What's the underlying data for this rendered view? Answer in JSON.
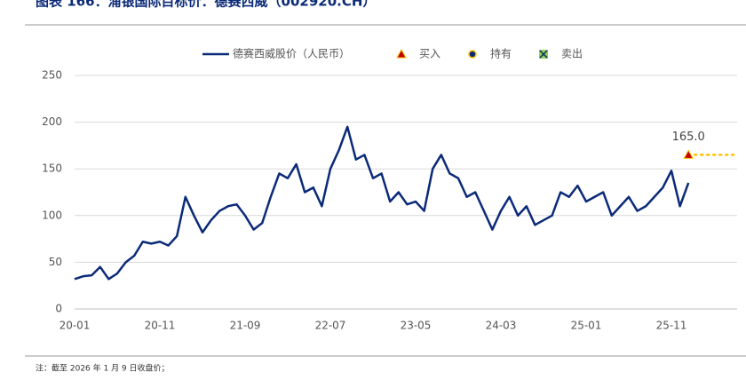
{
  "chart_data": {
    "type": "line",
    "title": "图表 166：浦银国际目标价：德赛西威（002920.CH）",
    "note": "注：截至 2026 年 1 月 9 日收盘价；",
    "categories": [
      "20-01",
      null,
      null,
      null,
      null,
      null,
      null,
      null,
      null,
      null,
      "20-11",
      null,
      null,
      null,
      null,
      null,
      null,
      null,
      null,
      null,
      "21-09",
      null,
      null,
      null,
      null,
      null,
      null,
      null,
      null,
      null,
      "22-07",
      null,
      null,
      null,
      null,
      null,
      null,
      null,
      null,
      null,
      "23-05",
      null,
      null,
      null,
      null,
      null,
      null,
      null,
      null,
      null,
      "24-03",
      null,
      null,
      null,
      null,
      null,
      null,
      null,
      null,
      null,
      "25-01",
      null,
      null,
      null,
      null,
      null,
      null,
      null,
      null,
      null,
      "25-11",
      null,
      null
    ],
    "series": [
      {
        "name": "德赛西威股价（人民币）",
        "color": "#0b2a78",
        "values": [
          32,
          35,
          36,
          45,
          32,
          38,
          50,
          57,
          72,
          70,
          72,
          68,
          78,
          120,
          100,
          82,
          95,
          105,
          110,
          112,
          100,
          85,
          92,
          120,
          145,
          140,
          155,
          125,
          130,
          110,
          150,
          170,
          195,
          160,
          165,
          140,
          145,
          115,
          125,
          112,
          115,
          105,
          150,
          165,
          145,
          140,
          120,
          125,
          105,
          85,
          105,
          120,
          100,
          110,
          90,
          95,
          100,
          125,
          120,
          132,
          115,
          120,
          125,
          100,
          110,
          120,
          105,
          110,
          120,
          130,
          148,
          110,
          135
        ]
      }
    ],
    "target": {
      "name": "买入",
      "value": 165,
      "value_label": "165.0",
      "color": "#c00000"
    },
    "legend_extra": [
      {
        "name": "持有",
        "color": "#0b2a78"
      },
      {
        "name": "卖出",
        "color": "#92d050"
      }
    ],
    "ylim": [
      0,
      250
    ],
    "yticks": [
      0,
      50,
      100,
      150,
      200,
      250
    ],
    "grid": true
  }
}
